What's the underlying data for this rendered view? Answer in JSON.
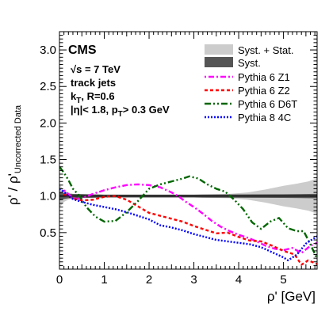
{
  "chart_data": {
    "type": "line",
    "experiment": "CMS",
    "info_lines": [
      {
        "main": "√s = 7 TeV"
      },
      {
        "main": "track jets"
      },
      {
        "main": "k",
        "sub": "T",
        "rest": ", R=0.6"
      },
      {
        "main": "|η|< 1.8, p",
        "sub": "T",
        "rest": "> 0.3 GeV"
      }
    ],
    "xlabel": "ρ' [GeV]",
    "ylabel_main": "ρ' / ρ'",
    "ylabel_sub": "Uncorrected Data",
    "xlim": [
      0,
      5.75
    ],
    "ylim": [
      0,
      3.25
    ],
    "xticks": [
      "0",
      "1",
      "2",
      "3",
      "4",
      "5"
    ],
    "yticks": [
      "0.5",
      "1.0",
      "1.5",
      "2.0",
      "2.5",
      "3.0"
    ],
    "legend": [
      "Syst. + Stat.",
      "Syst.",
      "Pythia 6 Z1",
      "Pythia 6 Z2",
      "Pythia 6 D6T",
      "Pythia 8 4C"
    ],
    "bands": [
      {
        "name": "Syst. + Stat.",
        "color": "#cccccc",
        "x": [
          0,
          0.1,
          0.2,
          0.3,
          1,
          2,
          3,
          3.8,
          4.2,
          4.6,
          5.0,
          5.3,
          5.55,
          5.75
        ],
        "half_width": [
          0.16,
          0.08,
          0.05,
          0.03,
          0.02,
          0.02,
          0.02,
          0.03,
          0.05,
          0.09,
          0.14,
          0.17,
          0.2,
          0.24
        ]
      },
      {
        "name": "Syst.",
        "color": "#555555",
        "x": [
          0,
          0.1,
          0.2,
          1,
          3,
          5,
          5.75
        ],
        "half_width": [
          0.06,
          0.04,
          0.03,
          0.02,
          0.02,
          0.025,
          0.03
        ]
      }
    ],
    "reference_line": 1.0,
    "series": [
      {
        "name": "Pythia 6 Z1",
        "color": "#ff00ff",
        "dash": "2,3,7,3",
        "x": [
          0.1,
          0.25,
          0.35,
          0.5,
          0.75,
          1.0,
          1.25,
          1.5,
          1.75,
          2.0,
          2.25,
          2.5,
          2.65,
          2.8,
          3.0,
          3.2,
          3.4,
          3.6,
          3.8,
          4.0,
          4.2,
          4.4,
          4.6,
          4.8,
          5.0,
          5.2,
          5.4,
          5.6,
          5.75
        ],
        "values": [
          1.08,
          1.0,
          0.96,
          0.97,
          1.03,
          1.08,
          1.12,
          1.15,
          1.16,
          1.15,
          1.12,
          1.05,
          1.0,
          0.93,
          0.85,
          0.76,
          0.66,
          0.58,
          0.52,
          0.47,
          0.43,
          0.38,
          0.32,
          0.28,
          0.26,
          0.29,
          0.22,
          0.32,
          0.36
        ]
      },
      {
        "name": "Pythia 6 Z2",
        "color": "#ff0000",
        "dash": "4,3",
        "x": [
          0.1,
          0.2,
          0.35,
          0.5,
          0.75,
          1.0,
          1.25,
          1.5,
          1.75,
          2.0,
          2.25,
          2.5,
          2.75,
          3.0,
          3.25,
          3.5,
          3.75,
          4.0,
          4.25,
          4.5,
          4.75,
          5.0,
          5.25,
          5.4,
          5.55,
          5.75
        ],
        "values": [
          1.02,
          1.0,
          0.96,
          0.94,
          0.95,
          0.99,
          1.0,
          0.95,
          0.86,
          0.77,
          0.73,
          0.69,
          0.65,
          0.59,
          0.54,
          0.49,
          0.5,
          0.44,
          0.39,
          0.38,
          0.32,
          0.25,
          0.2,
          0.06,
          0.12,
          0.07
        ]
      },
      {
        "name": "Pythia 6 D6T",
        "color": "#006600",
        "dash": "8,3,2,3,2,3",
        "x": [
          0.0,
          0.1,
          0.2,
          0.3,
          0.45,
          0.6,
          0.8,
          1.0,
          1.25,
          1.5,
          1.75,
          2.0,
          2.25,
          2.5,
          2.75,
          2.9,
          3.1,
          3.3,
          3.5,
          3.7,
          3.9,
          4.1,
          4.3,
          4.5,
          4.7,
          4.9,
          5.1,
          5.3,
          5.45,
          5.6,
          5.75
        ],
        "values": [
          1.4,
          1.32,
          1.22,
          1.1,
          1.0,
          0.85,
          0.72,
          0.65,
          0.66,
          0.78,
          0.93,
          1.1,
          1.16,
          1.2,
          1.24,
          1.27,
          1.24,
          1.16,
          1.1,
          1.06,
          0.95,
          0.82,
          0.64,
          0.55,
          0.65,
          0.7,
          0.56,
          0.52,
          0.52,
          0.34,
          0.14
        ]
      },
      {
        "name": "Pythia 8 4C",
        "color": "#0000ff",
        "dash": "2,2",
        "x": [
          0.0,
          0.1,
          0.2,
          0.3,
          0.5,
          0.75,
          1.0,
          1.25,
          1.5,
          1.75,
          2.0,
          2.25,
          2.5,
          2.75,
          3.0,
          3.25,
          3.5,
          3.75,
          4.0,
          4.25,
          4.5,
          4.75,
          5.0,
          5.1,
          5.3,
          5.5,
          5.75
        ],
        "values": [
          1.1,
          1.06,
          1.0,
          0.96,
          0.92,
          0.88,
          0.85,
          0.82,
          0.78,
          0.73,
          0.68,
          0.6,
          0.57,
          0.53,
          0.48,
          0.44,
          0.4,
          0.38,
          0.36,
          0.34,
          0.3,
          0.23,
          0.16,
          0.12,
          0.2,
          0.35,
          0.45
        ]
      }
    ]
  }
}
